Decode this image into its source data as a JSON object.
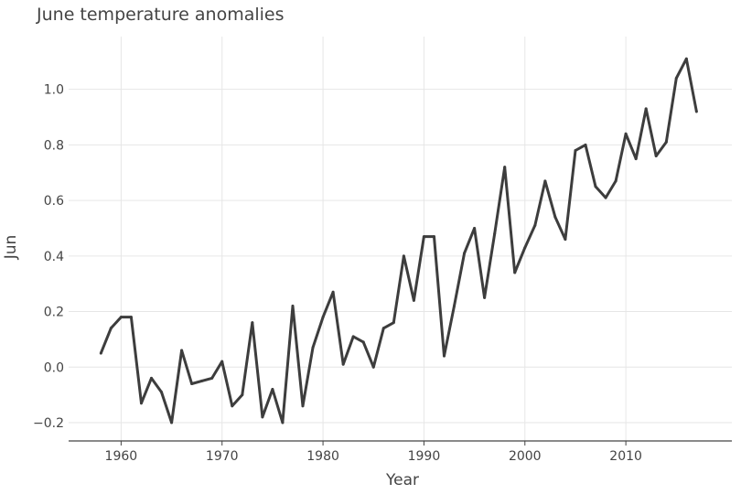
{
  "chart_data": {
    "type": "line",
    "title": "June temperature anomalies",
    "xlabel": "Year",
    "ylabel": "Jun",
    "xlim": [
      1954.8,
      2020.5
    ],
    "ylim": [
      -0.266,
      1.19
    ],
    "xticks": [
      1960,
      1970,
      1980,
      1990,
      2000,
      2010
    ],
    "yticks": [
      -0.2,
      0.0,
      0.2,
      0.4,
      0.6,
      0.8,
      1.0
    ],
    "xtick_labels": [
      "1960",
      "1970",
      "1980",
      "1990",
      "2000",
      "2010"
    ],
    "ytick_labels": [
      "−0.2",
      "0.0",
      "0.2",
      "0.4",
      "0.6",
      "0.8",
      "1.0"
    ],
    "grid": true,
    "line_color": "#3d3d3d",
    "x": [
      1958,
      1959,
      1960,
      1961,
      1962,
      1963,
      1964,
      1965,
      1966,
      1967,
      1968,
      1969,
      1970,
      1971,
      1972,
      1973,
      1974,
      1975,
      1976,
      1977,
      1978,
      1979,
      1980,
      1981,
      1982,
      1983,
      1984,
      1985,
      1986,
      1987,
      1988,
      1989,
      1990,
      1991,
      1992,
      1993,
      1994,
      1995,
      1996,
      1997,
      1998,
      1999,
      2000,
      2001,
      2002,
      2003,
      2004,
      2005,
      2006,
      2007,
      2008,
      2009,
      2010,
      2011,
      2012,
      2013,
      2014,
      2015,
      2016,
      2017
    ],
    "y": [
      0.05,
      0.14,
      0.18,
      0.18,
      -0.13,
      -0.04,
      -0.09,
      -0.2,
      0.06,
      -0.06,
      -0.05,
      -0.04,
      0.02,
      -0.14,
      -0.1,
      0.16,
      -0.18,
      -0.08,
      -0.2,
      0.22,
      -0.14,
      0.07,
      0.18,
      0.27,
      0.01,
      0.11,
      0.09,
      0.0,
      0.14,
      0.16,
      0.4,
      0.24,
      0.47,
      0.47,
      0.04,
      0.22,
      0.41,
      0.5,
      0.25,
      0.48,
      0.72,
      0.34,
      0.43,
      0.51,
      0.67,
      0.54,
      0.46,
      0.78,
      0.8,
      0.65,
      0.61,
      0.67,
      0.84,
      0.75,
      0.93,
      0.76,
      0.81,
      1.04,
      1.11,
      0.92
    ]
  }
}
